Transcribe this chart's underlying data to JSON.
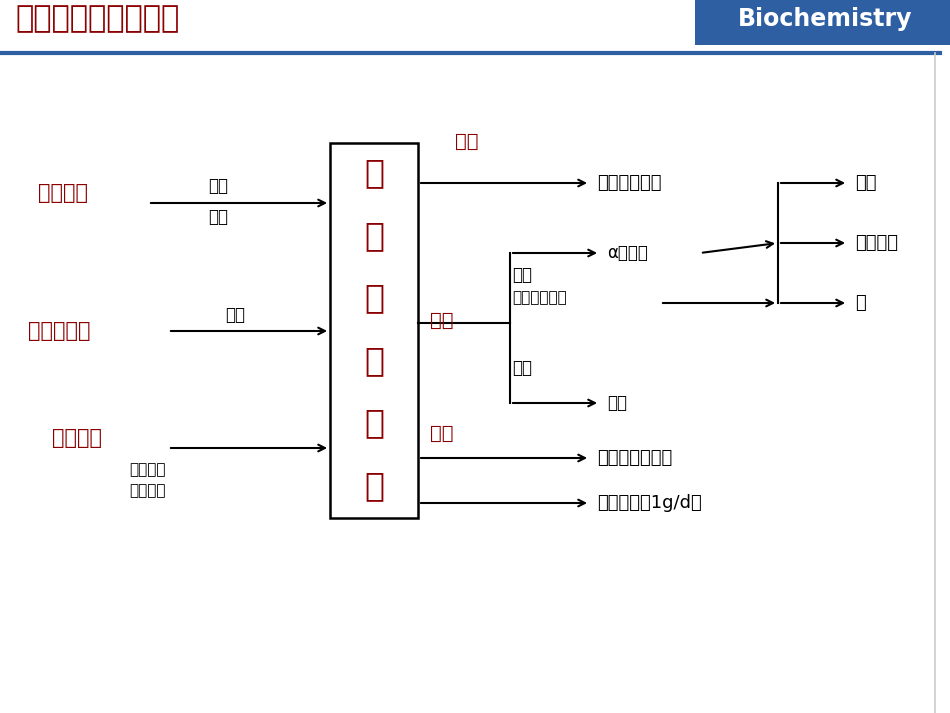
{
  "bg_color": "#ffffff",
  "title_text": "一、氨基酸代谢概况",
  "title_color": "#8B0000",
  "header_bg": "#2E5FA3",
  "header_text": "Biochemistry",
  "header_text_color": "#ffffff",
  "box_chars": [
    "氨",
    "基",
    "酸",
    "代",
    "谢",
    "库"
  ],
  "crimson": "#8B0000",
  "black": "#000000"
}
